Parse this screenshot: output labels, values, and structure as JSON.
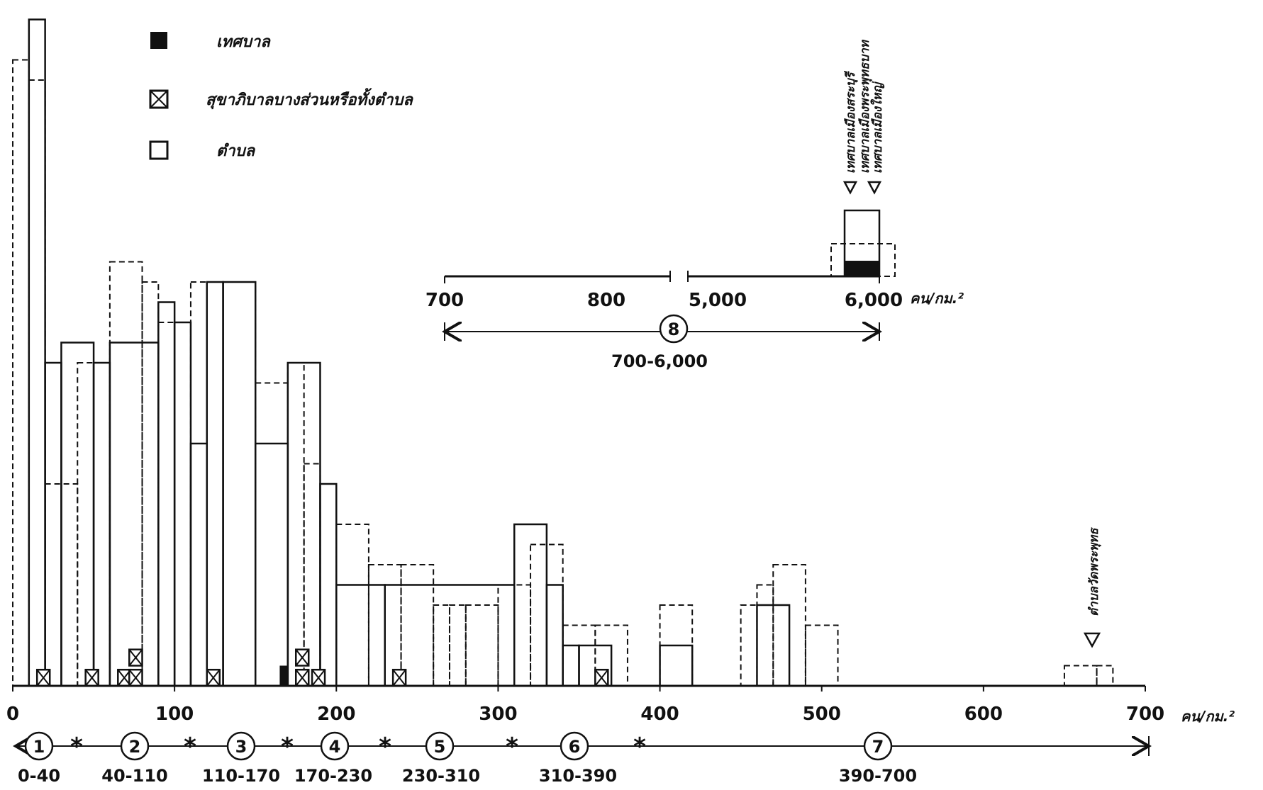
{
  "legend": {
    "items": [
      {
        "key": "municipality",
        "symbol": "filled-square",
        "label": "เทศบาล"
      },
      {
        "key": "sanitary",
        "symbol": "crossed-square",
        "label": "สุขาภิบาลบางส่วนหรือทั้งตำบล"
      },
      {
        "key": "tambon",
        "symbol": "open-square",
        "label": "ตำบล"
      }
    ]
  },
  "axis": {
    "main_ticks": [
      "0",
      "100",
      "200",
      "300",
      "400",
      "500",
      "600",
      "700"
    ],
    "unit": "คน/กม.²"
  },
  "inset": {
    "ticks": [
      "700",
      "800",
      "5,000",
      "6,000"
    ],
    "unit": "คน/กม.²",
    "class_number": "8",
    "class_range": "700-6,000",
    "annotations": [
      "เทศบาลเมืองสระบุรี",
      "เทศบาลเมืองพระพุทธบาท",
      "เทศบาลเมืองใหญ่"
    ]
  },
  "annotation_main": "ตำบลวัดพระพุทธ",
  "classes": [
    {
      "number": "1",
      "range": "0-40"
    },
    {
      "number": "2",
      "range": "40-110"
    },
    {
      "number": "3",
      "range": "110-170"
    },
    {
      "number": "4",
      "range": "170-230"
    },
    {
      "number": "5",
      "range": "230-310"
    },
    {
      "number": "6",
      "range": "310-390"
    },
    {
      "number": "7",
      "range": "390-700"
    }
  ],
  "chart_data": {
    "type": "bar",
    "xlabel": "คน/กม.²",
    "xlim": [
      0,
      700
    ],
    "grid": false,
    "legend_placement": "top-left",
    "series": [
      {
        "name": "ตำบล",
        "style": "solid step outline",
        "bins": [
          [
            10,
            20,
            33
          ],
          [
            20,
            30,
            16
          ],
          [
            30,
            50,
            17
          ],
          [
            50,
            60,
            16
          ],
          [
            60,
            90,
            17
          ],
          [
            90,
            100,
            19
          ],
          [
            100,
            110,
            18
          ],
          [
            110,
            120,
            12
          ],
          [
            120,
            130,
            20
          ],
          [
            130,
            150,
            20
          ],
          [
            150,
            170,
            12
          ],
          [
            170,
            190,
            16
          ],
          [
            190,
            200,
            10
          ],
          [
            200,
            230,
            5
          ],
          [
            230,
            310,
            5
          ],
          [
            310,
            330,
            8
          ],
          [
            330,
            340,
            5
          ],
          [
            340,
            350,
            2
          ],
          [
            350,
            370,
            2
          ],
          [
            400,
            420,
            2
          ],
          [
            460,
            480,
            4
          ]
        ]
      },
      {
        "name": "ตำบล (2)",
        "style": "dashed step outline",
        "bins": [
          [
            0,
            10,
            31
          ],
          [
            10,
            20,
            30
          ],
          [
            20,
            40,
            10
          ],
          [
            40,
            60,
            16
          ],
          [
            60,
            80,
            21
          ],
          [
            80,
            90,
            20
          ],
          [
            90,
            110,
            18
          ],
          [
            110,
            130,
            20
          ],
          [
            130,
            150,
            20
          ],
          [
            150,
            170,
            15
          ],
          [
            170,
            180,
            16
          ],
          [
            180,
            190,
            11
          ],
          [
            200,
            220,
            8
          ],
          [
            220,
            240,
            6
          ],
          [
            240,
            260,
            6
          ],
          [
            260,
            270,
            4
          ],
          [
            270,
            280,
            4
          ],
          [
            280,
            300,
            4
          ],
          [
            300,
            320,
            5
          ],
          [
            320,
            340,
            7
          ],
          [
            340,
            360,
            3
          ],
          [
            360,
            380,
            3
          ],
          [
            400,
            420,
            4
          ],
          [
            450,
            460,
            4
          ],
          [
            460,
            470,
            5
          ],
          [
            470,
            490,
            6
          ],
          [
            490,
            510,
            3
          ],
          [
            650,
            670,
            1
          ],
          [
            670,
            680,
            1
          ]
        ]
      },
      {
        "name": "เทศบาล",
        "style": "filled",
        "bins": [
          [
            165,
            170,
            1
          ],
          [
            6000,
            6010,
            1
          ]
        ]
      },
      {
        "name": "สุขาภิบาลบางส่วนหรือทั้งตำบล",
        "style": "crossed",
        "bins": [
          [
            15,
            20,
            1
          ],
          [
            45,
            50,
            1
          ],
          [
            65,
            70,
            1
          ],
          [
            72,
            80,
            2
          ],
          [
            120,
            125,
            1
          ],
          [
            175,
            180,
            2
          ],
          [
            185,
            190,
            1
          ],
          [
            235,
            240,
            1
          ],
          [
            360,
            365,
            1
          ]
        ]
      }
    ],
    "inset_data": {
      "xlim": [
        700,
        6000
      ],
      "bins": [
        [
          5900,
          5950,
          4
        ],
        [
          5950,
          6000,
          3
        ]
      ]
    }
  }
}
